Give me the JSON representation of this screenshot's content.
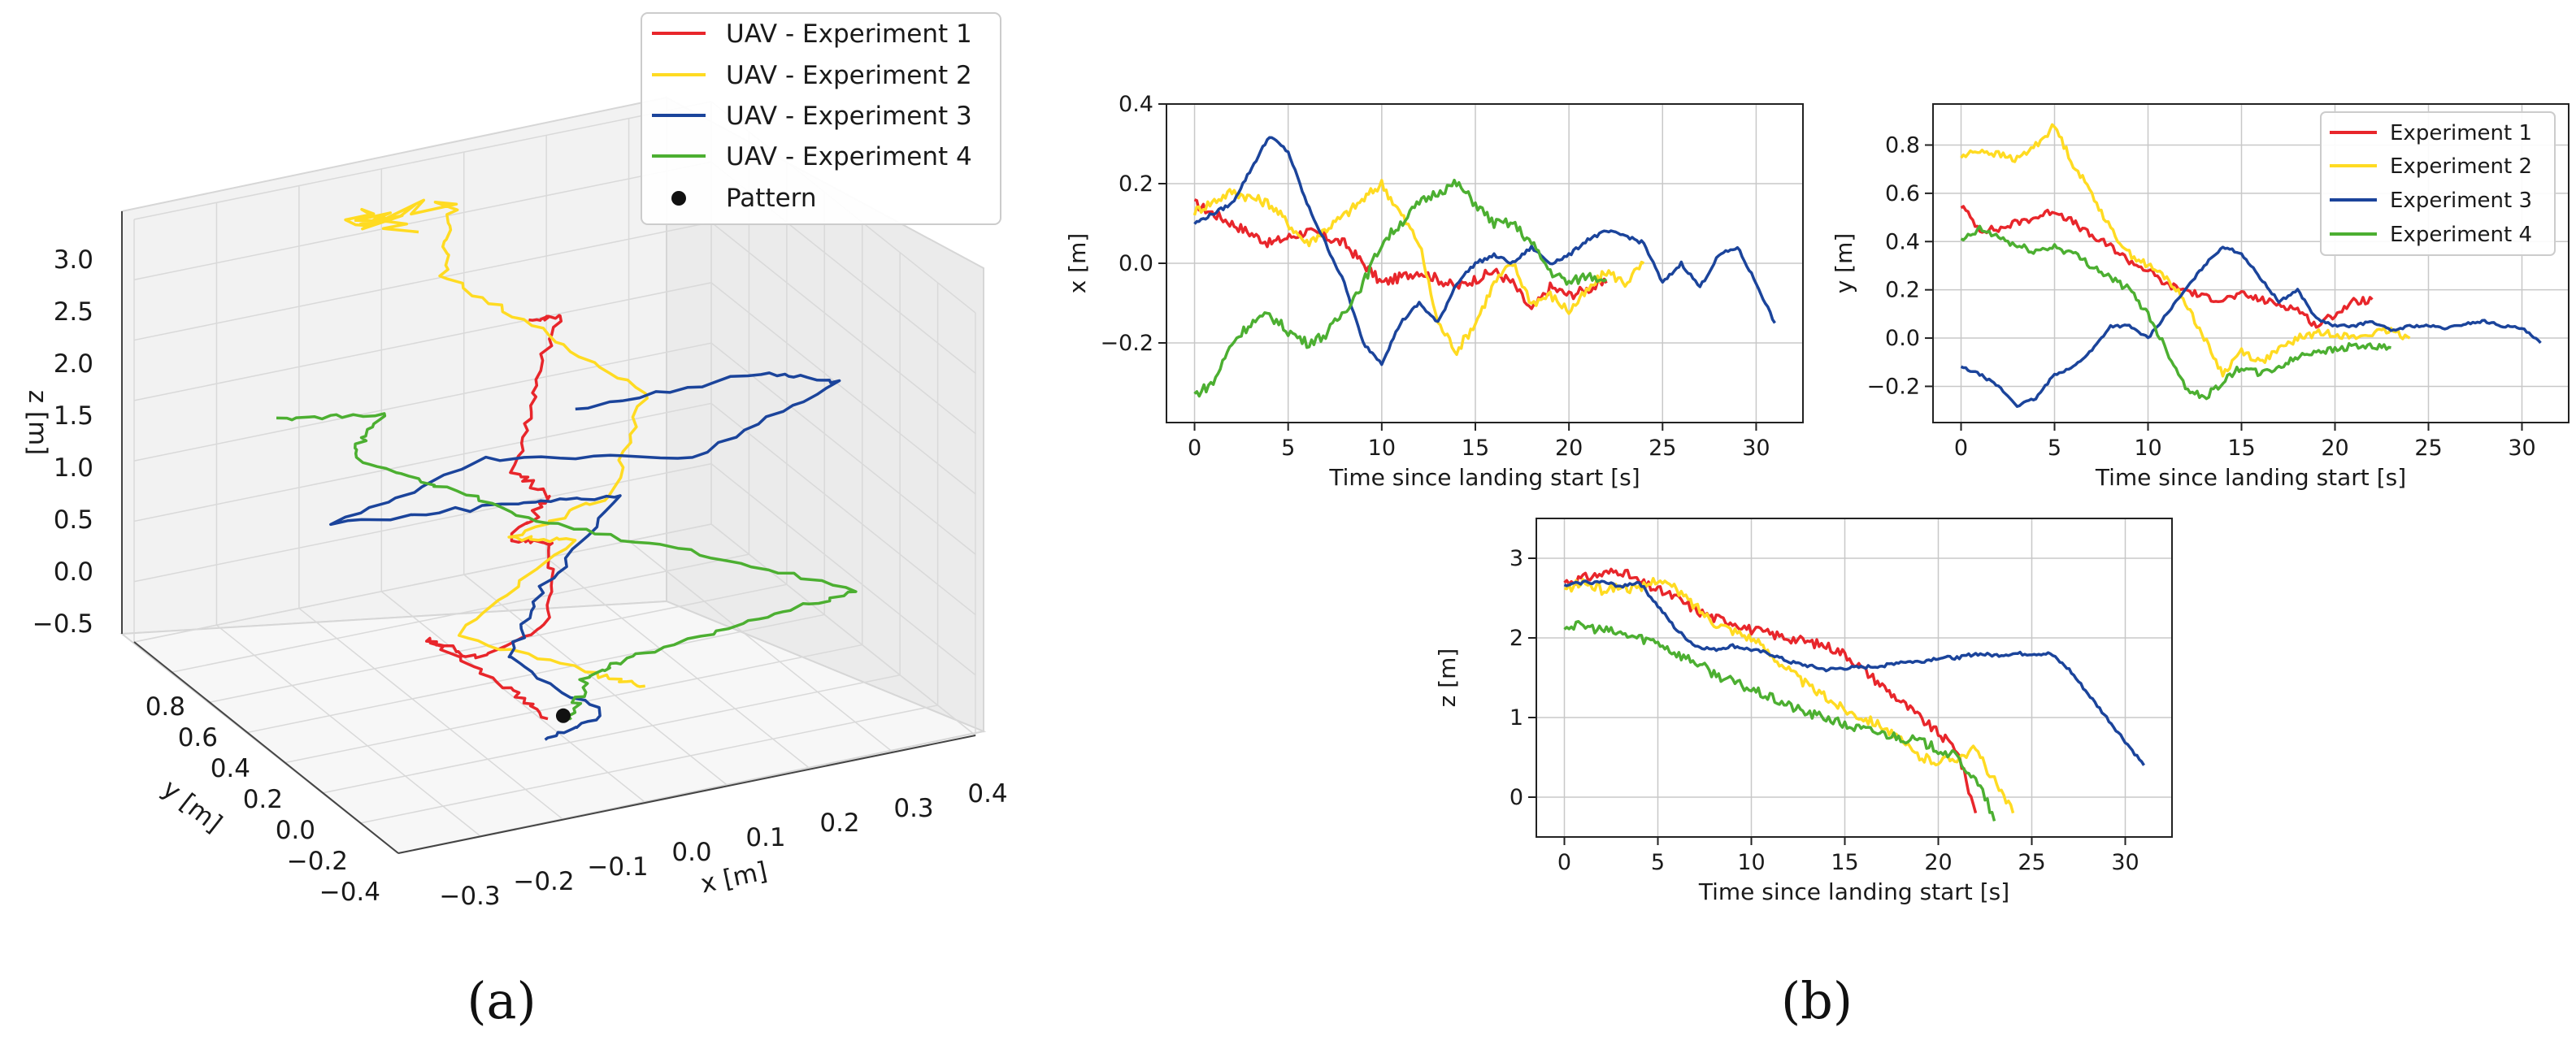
{
  "colors": {
    "exp1": "#e8262b",
    "exp2": "#ffdb22",
    "exp3": "#1b449b",
    "exp4": "#4caf31",
    "pattern": "#111111"
  },
  "captions": {
    "a": "(a)",
    "b": "(b)"
  },
  "chart_data": [
    {
      "type": "line3d",
      "id": "a",
      "xlabel": "x [m]",
      "ylabel": "y [m]",
      "zlabel": "z [m]",
      "xticks": [
        "−0.3",
        "−0.2",
        "−0.1",
        "0.0",
        "0.1",
        "0.2",
        "0.3",
        "0.4"
      ],
      "yticks": [
        "0.8",
        "0.6",
        "0.4",
        "0.2",
        "0.0",
        "−0.2",
        "−0.4"
      ],
      "zticks": [
        "3.0",
        "2.5",
        "2.0",
        "1.5",
        "1.0",
        "0.5",
        "0.0",
        "−0.5"
      ],
      "xlim": [
        -0.3,
        0.45
      ],
      "ylim": [
        -0.4,
        0.9
      ],
      "zlim": [
        -0.5,
        3.3
      ],
      "legend": [
        "UAV - Experiment 1",
        "UAV - Experiment 2",
        "UAV - Experiment 3",
        "UAV - Experiment 4",
        "Pattern"
      ],
      "legend_position": "top-right",
      "pattern": {
        "x": 0.02,
        "y": 0.0,
        "z": -0.3
      },
      "series": [
        {
          "name": "UAV - Experiment 1",
          "points": [
            [
              0.03,
              0.2,
              2.95
            ],
            [
              0.08,
              0.25,
              2.85
            ],
            [
              0.02,
              0.15,
              2.4
            ],
            [
              -0.03,
              0.05,
              1.9
            ],
            [
              0.03,
              0.1,
              1.5
            ],
            [
              -0.02,
              0.1,
              1.2
            ],
            [
              0.06,
              0.2,
              0.9
            ],
            [
              0.01,
              0.05,
              0.45
            ],
            [
              -0.05,
              0.15,
              0.1
            ],
            [
              -0.08,
              0.3,
              0.1
            ],
            [
              -0.03,
              0.1,
              -0.1
            ],
            [
              0.0,
              0.0,
              -0.3
            ]
          ]
        },
        {
          "name": "UAV - Experiment 2",
          "points": [
            [
              0.02,
              0.8,
              2.95
            ],
            [
              -0.05,
              0.75,
              3.2
            ],
            [
              0.1,
              0.85,
              2.9
            ],
            [
              0.05,
              0.7,
              2.6
            ],
            [
              0.12,
              0.5,
              2.3
            ],
            [
              0.18,
              0.2,
              2.1
            ],
            [
              0.08,
              0.0,
              1.6
            ],
            [
              -0.02,
              0.1,
              1.2
            ],
            [
              0.1,
              0.25,
              0.8
            ],
            [
              -0.08,
              0.15,
              0.35
            ],
            [
              0.05,
              -0.05,
              0.1
            ],
            [
              0.1,
              -0.1,
              0.0
            ]
          ]
        },
        {
          "name": "UAV - Experiment 3",
          "points": [
            [
              0.0,
              -0.15,
              2.7
            ],
            [
              0.25,
              -0.1,
              2.6
            ],
            [
              0.38,
              0.0,
              2.2
            ],
            [
              0.22,
              0.1,
              1.6
            ],
            [
              0.0,
              0.3,
              1.6
            ],
            [
              -0.2,
              0.3,
              1.3
            ],
            [
              0.05,
              0.35,
              1.05
            ],
            [
              0.15,
              0.2,
              1.2
            ],
            [
              0.02,
              0.1,
              0.7
            ],
            [
              -0.05,
              0.0,
              0.3
            ],
            [
              0.02,
              -0.2,
              0.0
            ],
            [
              -0.03,
              -0.1,
              -0.3
            ]
          ]
        },
        {
          "name": "UAV - Experiment 4",
          "points": [
            [
              -0.25,
              0.4,
              2.15
            ],
            [
              -0.12,
              0.35,
              2.1
            ],
            [
              -0.15,
              0.4,
              1.7
            ],
            [
              -0.05,
              0.35,
              1.35
            ],
            [
              0.05,
              0.2,
              1.1
            ],
            [
              0.2,
              0.0,
              0.9
            ],
            [
              0.35,
              -0.2,
              0.65
            ],
            [
              0.25,
              -0.1,
              0.4
            ],
            [
              0.1,
              -0.05,
              0.2
            ],
            [
              0.05,
              0.0,
              0.0
            ],
            [
              0.03,
              0.0,
              -0.35
            ]
          ]
        }
      ]
    },
    {
      "type": "line",
      "id": "x",
      "xlabel": "Time since landing start [s]",
      "ylabel": "x [m]",
      "xlim": [
        -1.5,
        32.5
      ],
      "ylim": [
        -0.4,
        0.4
      ],
      "xticks": [
        0,
        5,
        10,
        15,
        20,
        25,
        30
      ],
      "yticks": [
        -0.2,
        0.0,
        0.2,
        0.4
      ],
      "yticklabels": [
        "−0.2",
        "0.0",
        "0.2",
        "0.4"
      ],
      "grid": true,
      "series": [
        {
          "name": "Experiment 1",
          "x": [
            0,
            2,
            4,
            6,
            8,
            10,
            12,
            14,
            16,
            17,
            18,
            19,
            20,
            22
          ],
          "values": [
            0.15,
            0.1,
            0.05,
            0.08,
            0.05,
            -0.05,
            -0.02,
            -0.06,
            -0.02,
            -0.05,
            -0.12,
            -0.06,
            -0.08,
            -0.05
          ]
        },
        {
          "name": "Experiment 2",
          "x": [
            0,
            2,
            4,
            6,
            8,
            10,
            12,
            13,
            14,
            15,
            16,
            17,
            18,
            19,
            20,
            22,
            23,
            24
          ],
          "values": [
            0.13,
            0.18,
            0.15,
            0.05,
            0.12,
            0.2,
            0.05,
            -0.15,
            -0.22,
            -0.15,
            -0.05,
            0.0,
            -0.1,
            -0.08,
            -0.12,
            -0.02,
            -0.05,
            0.0
          ]
        },
        {
          "name": "Experiment 3",
          "x": [
            0,
            2,
            4,
            5,
            6,
            7,
            8,
            9,
            10,
            11,
            12,
            13,
            14,
            15,
            16,
            17,
            18,
            19,
            20,
            21,
            22,
            23,
            24,
            25,
            26,
            27,
            28,
            29,
            30,
            31
          ],
          "values": [
            0.1,
            0.15,
            0.32,
            0.28,
            0.15,
            0.05,
            -0.05,
            -0.2,
            -0.25,
            -0.15,
            -0.1,
            -0.15,
            -0.05,
            0.0,
            0.02,
            0.0,
            0.04,
            0.0,
            0.02,
            0.06,
            0.08,
            0.07,
            0.05,
            -0.05,
            0.0,
            -0.06,
            0.02,
            0.04,
            -0.05,
            -0.15
          ]
        },
        {
          "name": "Experiment 4",
          "x": [
            0,
            1,
            2,
            3,
            4,
            5,
            6,
            7,
            8,
            9,
            10,
            11,
            12,
            13,
            14,
            15,
            16,
            17,
            18,
            19,
            20,
            21,
            22
          ],
          "values": [
            -0.33,
            -0.3,
            -0.2,
            -0.15,
            -0.13,
            -0.17,
            -0.2,
            -0.18,
            -0.12,
            -0.05,
            0.05,
            0.1,
            0.15,
            0.18,
            0.2,
            0.15,
            0.1,
            0.1,
            0.05,
            -0.02,
            -0.05,
            -0.03,
            -0.04
          ]
        }
      ]
    },
    {
      "type": "line",
      "id": "y",
      "xlabel": "Time since landing start [s]",
      "ylabel": "y [m]",
      "xlim": [
        -1.5,
        32.5
      ],
      "ylim": [
        -0.35,
        0.97
      ],
      "xticks": [
        0,
        5,
        10,
        15,
        20,
        25,
        30
      ],
      "yticks": [
        -0.2,
        0.0,
        0.2,
        0.4,
        0.6,
        0.8
      ],
      "yticklabels": [
        "−0.2",
        "0.0",
        "0.2",
        "0.4",
        "0.6",
        "0.8"
      ],
      "grid": true,
      "legend": [
        "Experiment 1",
        "Experiment 2",
        "Experiment 3",
        "Experiment 4"
      ],
      "legend_position": "top-right",
      "series": [
        {
          "name": "Experiment 1",
          "x": [
            0,
            1,
            2,
            3,
            4,
            5,
            6,
            7,
            8,
            9,
            10,
            11,
            12,
            13,
            14,
            15,
            16,
            17,
            18,
            19,
            20,
            21,
            22
          ],
          "values": [
            0.55,
            0.45,
            0.45,
            0.48,
            0.5,
            0.53,
            0.48,
            0.42,
            0.38,
            0.32,
            0.28,
            0.22,
            0.2,
            0.17,
            0.16,
            0.18,
            0.16,
            0.14,
            0.12,
            0.05,
            0.1,
            0.15,
            0.16
          ]
        },
        {
          "name": "Experiment 2",
          "x": [
            0,
            1,
            2,
            3,
            4,
            5,
            6,
            7,
            8,
            9,
            10,
            11,
            12,
            13,
            14,
            15,
            16,
            17,
            18,
            19,
            20,
            21,
            22,
            23,
            24
          ],
          "values": [
            0.75,
            0.78,
            0.76,
            0.74,
            0.8,
            0.88,
            0.72,
            0.6,
            0.45,
            0.35,
            0.3,
            0.25,
            0.15,
            0.0,
            -0.15,
            -0.05,
            -0.1,
            -0.05,
            0.0,
            0.02,
            0.02,
            0.0,
            0.02,
            0.03,
            0.0
          ]
        },
        {
          "name": "Experiment 3",
          "x": [
            0,
            1,
            2,
            3,
            4,
            5,
            6,
            7,
            8,
            9,
            10,
            11,
            12,
            13,
            14,
            15,
            16,
            17,
            18,
            19,
            20,
            21,
            22,
            23,
            24,
            25,
            26,
            27,
            28,
            29,
            30,
            31
          ],
          "values": [
            -0.12,
            -0.15,
            -0.2,
            -0.28,
            -0.25,
            -0.15,
            -0.12,
            -0.05,
            0.05,
            0.05,
            0.0,
            0.1,
            0.2,
            0.3,
            0.38,
            0.35,
            0.25,
            0.15,
            0.2,
            0.08,
            0.05,
            0.05,
            0.07,
            0.03,
            0.05,
            0.05,
            0.04,
            0.06,
            0.07,
            0.05,
            0.04,
            -0.02
          ]
        },
        {
          "name": "Experiment 4",
          "x": [
            0,
            1,
            2,
            3,
            4,
            5,
            6,
            7,
            8,
            9,
            10,
            11,
            12,
            13,
            14,
            15,
            16,
            17,
            18,
            19,
            20,
            21,
            22,
            23
          ],
          "values": [
            0.4,
            0.45,
            0.42,
            0.38,
            0.36,
            0.38,
            0.35,
            0.3,
            0.25,
            0.2,
            0.1,
            -0.05,
            -0.2,
            -0.25,
            -0.18,
            -0.12,
            -0.15,
            -0.12,
            -0.08,
            -0.05,
            -0.05,
            -0.03,
            -0.04,
            -0.04
          ]
        }
      ]
    },
    {
      "type": "line",
      "id": "z",
      "xlabel": "Time since landing start [s]",
      "ylabel": "z [m]",
      "xlim": [
        -1.5,
        32.5
      ],
      "ylim": [
        -0.5,
        3.5
      ],
      "xticks": [
        0,
        5,
        10,
        15,
        20,
        25,
        30
      ],
      "yticks": [
        0,
        1,
        2,
        3
      ],
      "yticklabels": [
        "0",
        "1",
        "2",
        "3"
      ],
      "grid": true,
      "series": [
        {
          "name": "Experiment 1",
          "x": [
            0,
            1,
            2,
            3,
            4,
            5,
            6,
            7,
            8,
            9,
            10,
            11,
            12,
            13,
            14,
            15,
            16,
            17,
            18,
            19,
            20,
            21,
            21.5,
            22
          ],
          "values": [
            2.7,
            2.75,
            2.8,
            2.85,
            2.7,
            2.6,
            2.5,
            2.35,
            2.25,
            2.2,
            2.1,
            2.05,
            2.0,
            1.95,
            1.9,
            1.8,
            1.6,
            1.4,
            1.2,
            1.0,
            0.8,
            0.6,
            0.2,
            -0.2
          ]
        },
        {
          "name": "Experiment 2",
          "x": [
            0,
            1,
            2,
            3,
            4,
            5,
            6,
            7,
            8,
            9,
            10,
            11,
            12,
            13,
            14,
            15,
            16,
            17,
            18,
            19,
            20,
            21,
            22,
            23,
            24
          ],
          "values": [
            2.6,
            2.7,
            2.6,
            2.65,
            2.6,
            2.75,
            2.6,
            2.4,
            2.2,
            2.1,
            2.0,
            1.8,
            1.6,
            1.4,
            1.25,
            1.1,
            1.0,
            0.9,
            0.7,
            0.5,
            0.45,
            0.5,
            0.6,
            0.2,
            -0.2
          ]
        },
        {
          "name": "Experiment 3",
          "x": [
            0,
            1,
            2,
            3,
            4,
            5,
            6,
            7,
            8,
            9,
            10,
            11,
            12,
            13,
            14,
            15,
            16,
            17,
            18,
            19,
            20,
            21,
            22,
            23,
            24,
            25,
            26,
            27,
            28,
            29,
            30,
            31
          ],
          "values": [
            2.65,
            2.7,
            2.7,
            2.65,
            2.7,
            2.4,
            2.1,
            1.9,
            1.85,
            1.9,
            1.85,
            1.8,
            1.7,
            1.65,
            1.6,
            1.62,
            1.63,
            1.65,
            1.7,
            1.7,
            1.75,
            1.75,
            1.8,
            1.78,
            1.8,
            1.8,
            1.8,
            1.6,
            1.3,
            1.0,
            0.7,
            0.4
          ]
        },
        {
          "name": "Experiment 4",
          "x": [
            0,
            1,
            2,
            3,
            4,
            5,
            6,
            7,
            8,
            9,
            10,
            11,
            12,
            13,
            14,
            15,
            16,
            17,
            18,
            19,
            20,
            21,
            22,
            22.5,
            23
          ],
          "values": [
            2.15,
            2.15,
            2.1,
            2.05,
            2.0,
            1.95,
            1.8,
            1.7,
            1.55,
            1.45,
            1.35,
            1.25,
            1.15,
            1.05,
            1.0,
            0.9,
            0.85,
            0.8,
            0.75,
            0.7,
            0.6,
            0.5,
            0.2,
            0.0,
            -0.3
          ]
        }
      ]
    }
  ]
}
